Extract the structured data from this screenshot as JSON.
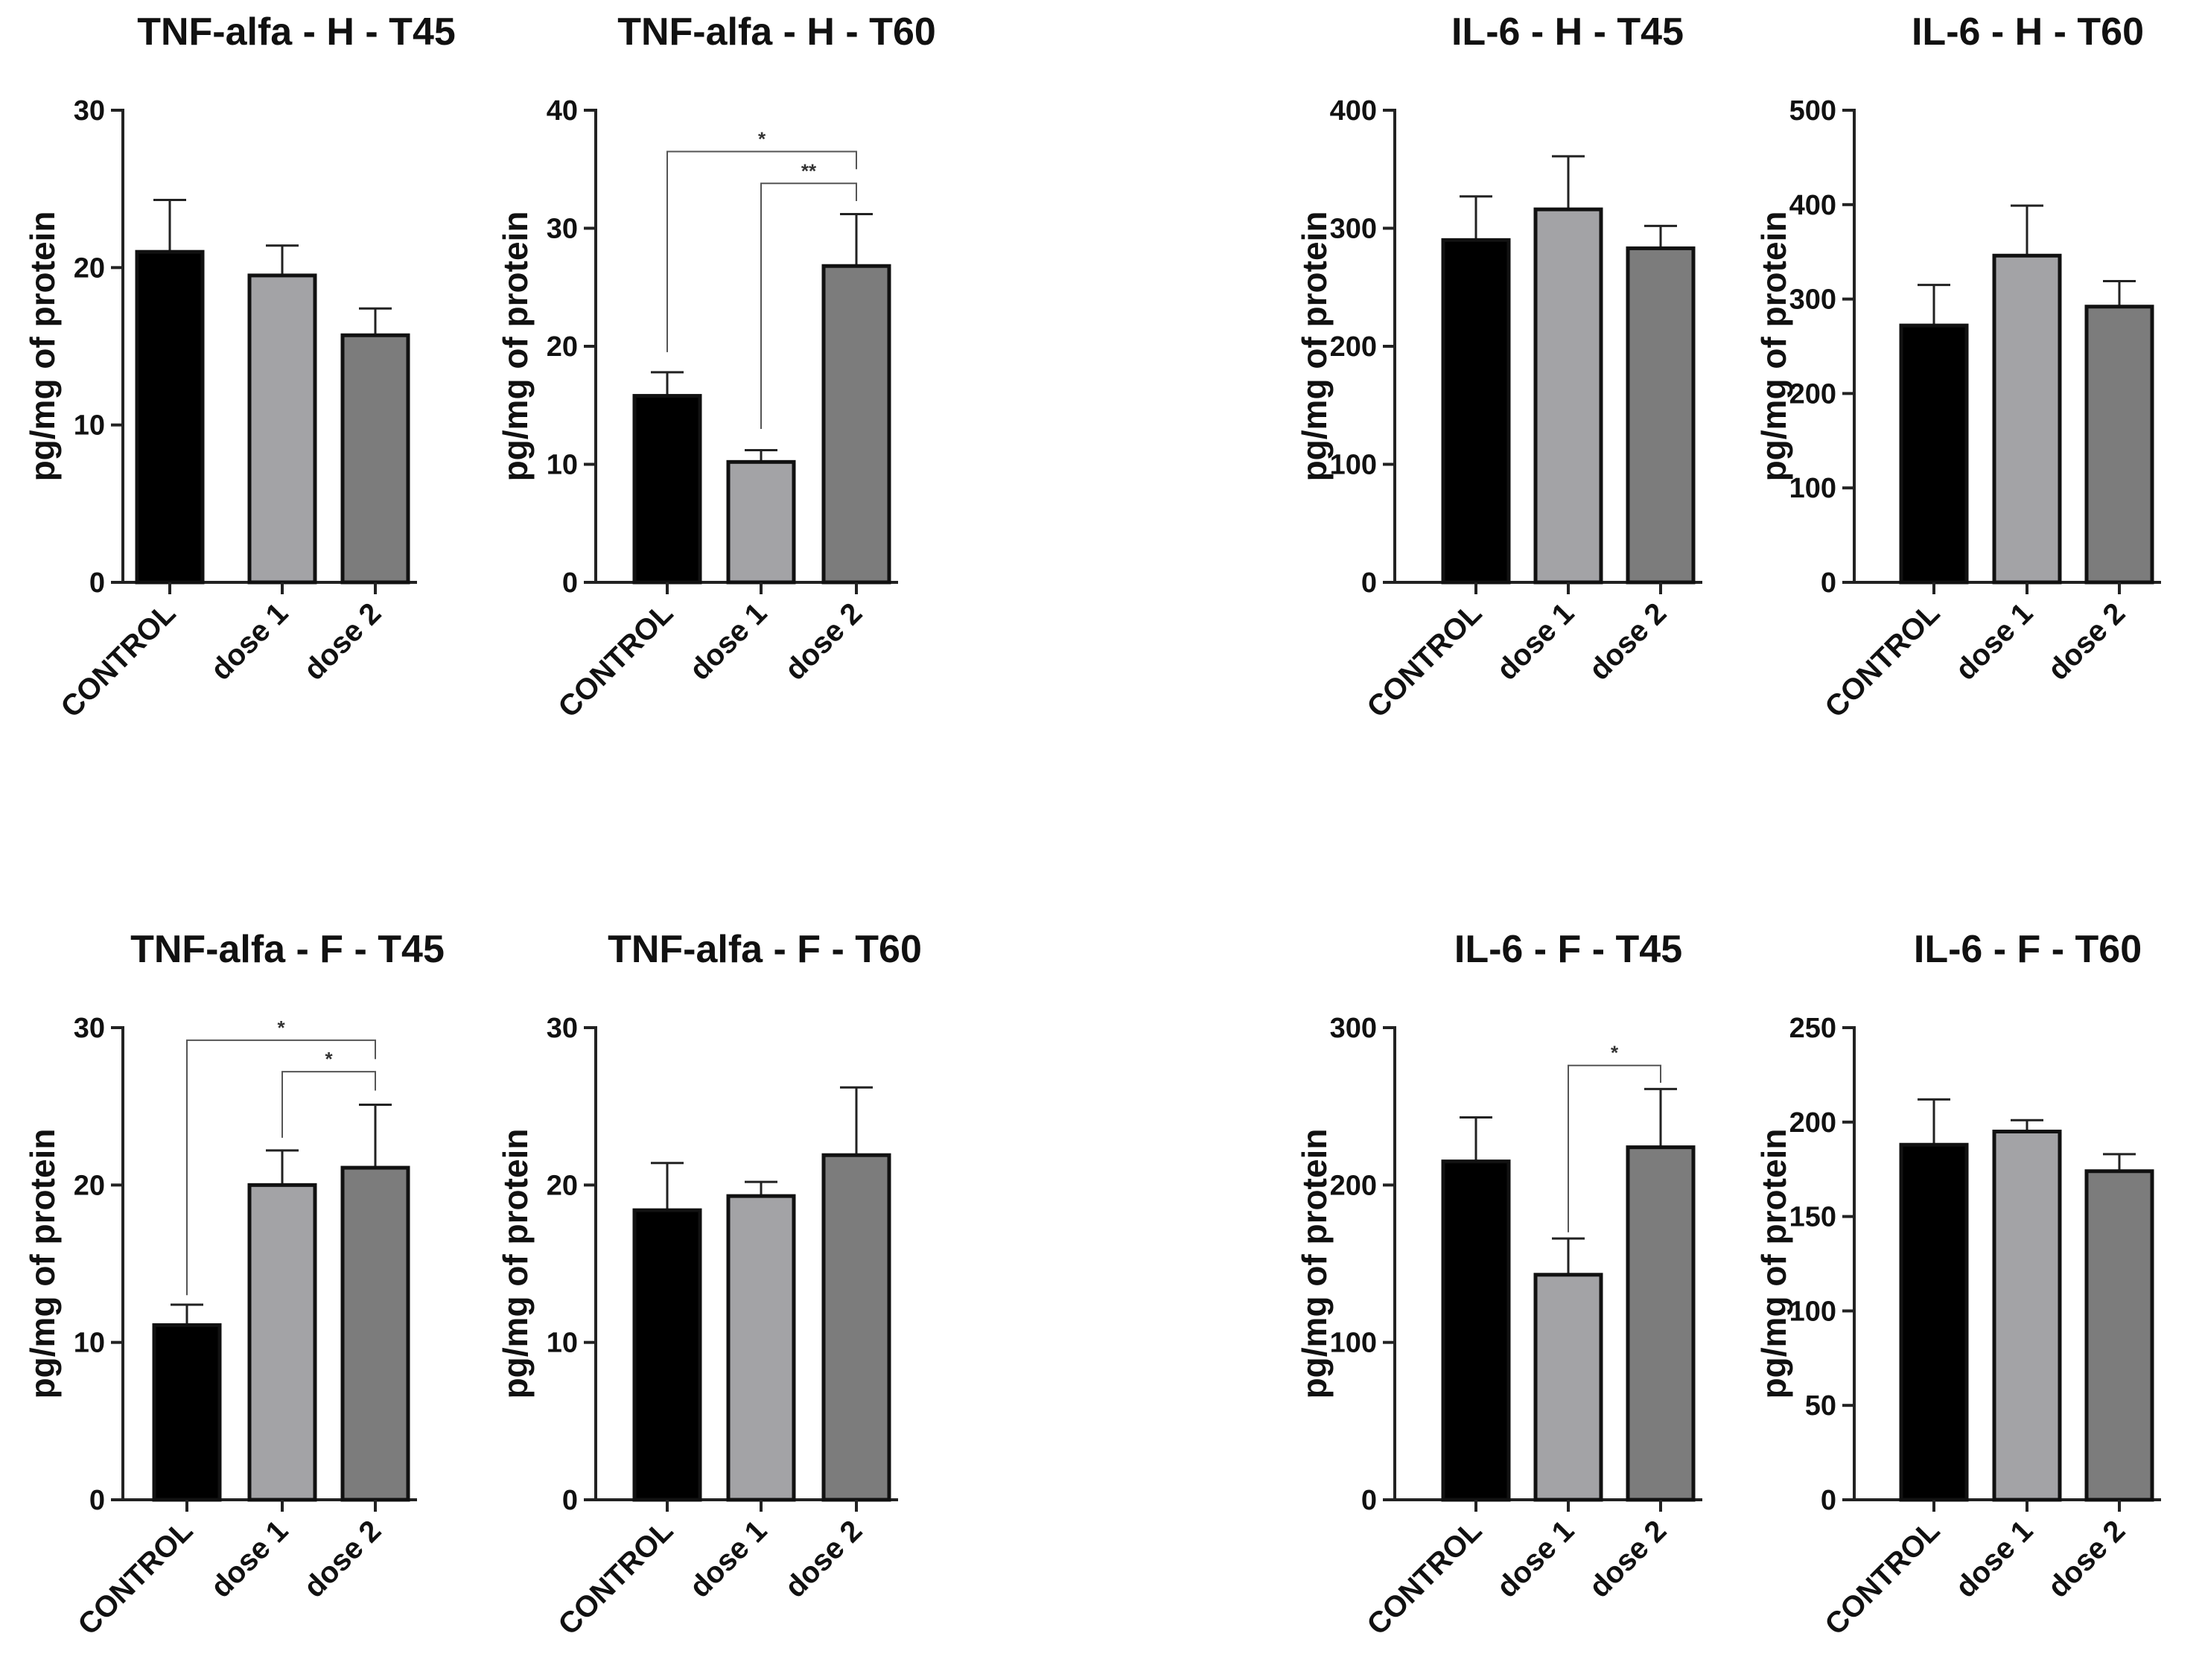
{
  "figure": {
    "category_labels": [
      "CONTROL",
      "dose 1",
      "dose 2"
    ],
    "y_axis_label": "pg/mg of protein",
    "bar_colors": [
      "#000000",
      "#a3a3a6",
      "#7c7c7c"
    ]
  },
  "chart_data": [
    {
      "type": "bar",
      "title": "TNF-alfa - H - T45",
      "xlabel": "",
      "ylabel": "pg/mg of protein",
      "categories": [
        "CONTROL",
        "dose 1",
        "dose 2"
      ],
      "values": [
        21.0,
        19.5,
        15.7
      ],
      "errors": [
        3.3,
        1.9,
        1.7
      ],
      "ylim": [
        0,
        30
      ],
      "yticks": [
        0,
        10,
        20,
        30
      ],
      "significance": []
    },
    {
      "type": "bar",
      "title": "TNF-alfa - H - T60",
      "xlabel": "",
      "ylabel": "pg/mg of protein",
      "categories": [
        "CONTROL",
        "dose 1",
        "dose 2"
      ],
      "values": [
        15.8,
        10.2,
        26.8
      ],
      "errors": [
        2.0,
        1.0,
        4.4
      ],
      "ylim": [
        0,
        40
      ],
      "yticks": [
        0,
        10,
        20,
        30,
        40
      ],
      "significance": [
        {
          "from": 0,
          "to": 2,
          "label": "*",
          "start_y": 19.5,
          "line_y": 36.5,
          "end_y": 35.0
        },
        {
          "from": 1,
          "to": 2,
          "label": "**",
          "start_y": 13.0,
          "line_y": 33.8,
          "end_y": 32.3
        }
      ]
    },
    {
      "type": "bar",
      "title": "IL-6 - H - T45",
      "xlabel": "",
      "ylabel": "pg/mg of protein",
      "categories": [
        "CONTROL",
        "dose 1",
        "dose 2"
      ],
      "values": [
        290,
        316,
        283
      ],
      "errors": [
        37,
        45,
        19
      ],
      "ylim": [
        0,
        400
      ],
      "yticks": [
        0,
        100,
        200,
        300,
        400
      ],
      "significance": []
    },
    {
      "type": "bar",
      "title": "IL-6 - H - T60",
      "xlabel": "",
      "ylabel": "pg/mg of protein",
      "categories": [
        "CONTROL",
        "dose 1",
        "dose 2"
      ],
      "values": [
        272,
        346,
        292
      ],
      "errors": [
        43,
        53,
        27
      ],
      "ylim": [
        0,
        500
      ],
      "yticks": [
        0,
        100,
        200,
        300,
        400,
        500
      ],
      "significance": []
    },
    {
      "type": "bar",
      "title": "TNF-alfa - F - T45",
      "xlabel": "",
      "ylabel": "pg/mg of protein",
      "categories": [
        "CONTROL",
        "dose 1",
        "dose 2"
      ],
      "values": [
        11.1,
        20.0,
        21.1
      ],
      "errors": [
        1.3,
        2.2,
        4.0
      ],
      "ylim": [
        0,
        30
      ],
      "yticks": [
        0,
        10,
        20,
        30
      ],
      "significance": [
        {
          "from": 0,
          "to": 2,
          "label": "*",
          "start_y": 13.0,
          "line_y": 29.2,
          "end_y": 28.0
        },
        {
          "from": 1,
          "to": 2,
          "label": "*",
          "start_y": 23.0,
          "line_y": 27.2,
          "end_y": 26.0
        }
      ]
    },
    {
      "type": "bar",
      "title": "TNF-alfa - F - T60",
      "xlabel": "",
      "ylabel": "pg/mg of protein",
      "categories": [
        "CONTROL",
        "dose 1",
        "dose 2"
      ],
      "values": [
        18.4,
        19.3,
        21.9
      ],
      "errors": [
        3.0,
        0.9,
        4.3
      ],
      "ylim": [
        0,
        30
      ],
      "yticks": [
        0,
        10,
        20,
        30
      ],
      "significance": []
    },
    {
      "type": "bar",
      "title": "IL-6 - F - T45",
      "xlabel": "",
      "ylabel": "pg/mg of protein",
      "categories": [
        "CONTROL",
        "dose 1",
        "dose 2"
      ],
      "values": [
        215,
        143,
        224
      ],
      "errors": [
        28,
        23,
        37
      ],
      "ylim": [
        0,
        300
      ],
      "yticks": [
        0,
        100,
        200,
        300
      ],
      "significance": [
        {
          "from": 1,
          "to": 2,
          "label": "*",
          "start_y": 170,
          "line_y": 276,
          "end_y": 265
        }
      ]
    },
    {
      "type": "bar",
      "title": "IL-6 - F - T60",
      "xlabel": "",
      "ylabel": "pg/mg of protein",
      "categories": [
        "CONTROL",
        "dose 1",
        "dose 2"
      ],
      "values": [
        188,
        195,
        174
      ],
      "errors": [
        24,
        6,
        9
      ],
      "ylim": [
        0,
        250
      ],
      "yticks": [
        0,
        50,
        100,
        150,
        200,
        250
      ],
      "significance": []
    }
  ]
}
